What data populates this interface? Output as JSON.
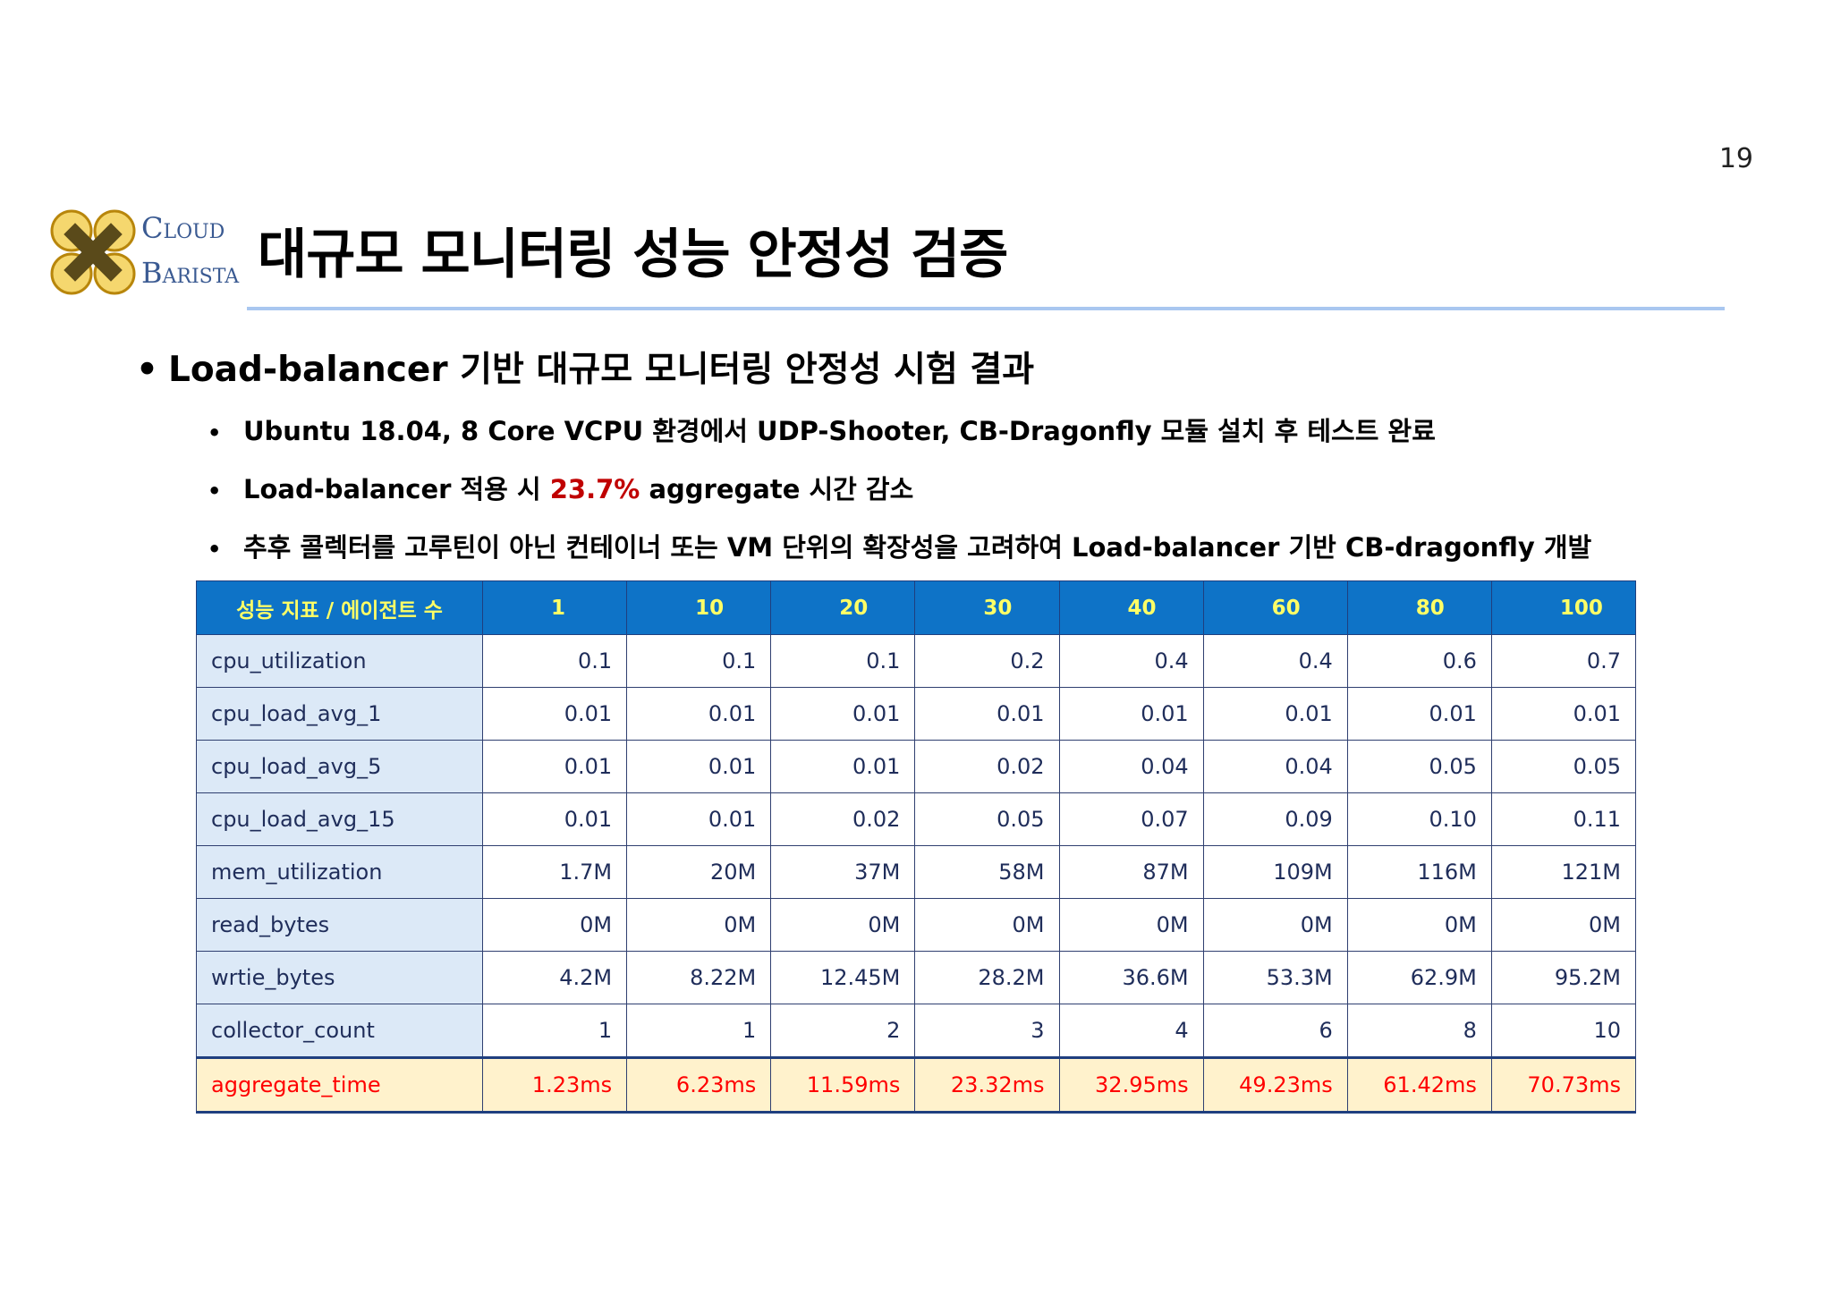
{
  "page_number": "19",
  "logo": {
    "cloud_big": "C",
    "cloud_small": "LOUD",
    "barista_big": "B",
    "barista_small": "ARISTA"
  },
  "title": "대규모 모니터링 성능 안정성 검증",
  "bullet_main": "Load-balancer 기반 대규모 모니터링 안정성 시험 결과",
  "sub_bullets": {
    "b1": "Ubuntu 18.04, 8 Core VCPU 환경에서 UDP-Shooter, CB-Dragonfly 모듈 설치 후 테스트 완료",
    "b2_pre": "Load-balancer 적용 시 ",
    "b2_highlight": "23.7%",
    "b2_post": " aggregate 시간 감소",
    "b3": "추후 콜렉터를 고루틴이 아닌 컨테이너 또는 VM 단위의 확장성을 고려하여 Load-balancer 기반 CB-dragonfly 개발"
  },
  "colors": {
    "header_bg": "#0e73c7",
    "header_text": "#ffff66",
    "metric_bg": "#dce9f7",
    "agg_bg": "#fff2cc",
    "agg_text": "#ff0000",
    "highlight": "#c00000"
  },
  "table": {
    "header": [
      "성능 지표 / 에이전트 수",
      "1",
      "10",
      "20",
      "30",
      "40",
      "60",
      "80",
      "100"
    ],
    "rows": [
      {
        "metric": "cpu_utilization",
        "values": [
          "0.1",
          "0.1",
          "0.1",
          "0.2",
          "0.4",
          "0.4",
          "0.6",
          "0.7"
        ]
      },
      {
        "metric": "cpu_load_avg_1",
        "values": [
          "0.01",
          "0.01",
          "0.01",
          "0.01",
          "0.01",
          "0.01",
          "0.01",
          "0.01"
        ]
      },
      {
        "metric": "cpu_load_avg_5",
        "values": [
          "0.01",
          "0.01",
          "0.01",
          "0.02",
          "0.04",
          "0.04",
          "0.05",
          "0.05"
        ]
      },
      {
        "metric": "cpu_load_avg_15",
        "values": [
          "0.01",
          "0.01",
          "0.02",
          "0.05",
          "0.07",
          "0.09",
          "0.10",
          "0.11"
        ]
      },
      {
        "metric": "mem_utilization",
        "values": [
          "1.7M",
          "20M",
          "37M",
          "58M",
          "87M",
          "109M",
          "116M",
          "121M"
        ]
      },
      {
        "metric": "read_bytes",
        "values": [
          "0M",
          "0M",
          "0M",
          "0M",
          "0M",
          "0M",
          "0M",
          "0M"
        ]
      },
      {
        "metric": "wrtie_bytes",
        "values": [
          "4.2M",
          "8.22M",
          "12.45M",
          "28.2M",
          "36.6M",
          "53.3M",
          "62.9M",
          "95.2M"
        ]
      },
      {
        "metric": "collector_count",
        "values": [
          "1",
          "1",
          "2",
          "3",
          "4",
          "6",
          "8",
          "10"
        ]
      },
      {
        "metric": "aggregate_time",
        "values": [
          "1.23ms",
          "6.23ms",
          "11.59ms",
          "23.32ms",
          "32.95ms",
          "49.23ms",
          "61.42ms",
          "70.73ms"
        ]
      }
    ]
  }
}
